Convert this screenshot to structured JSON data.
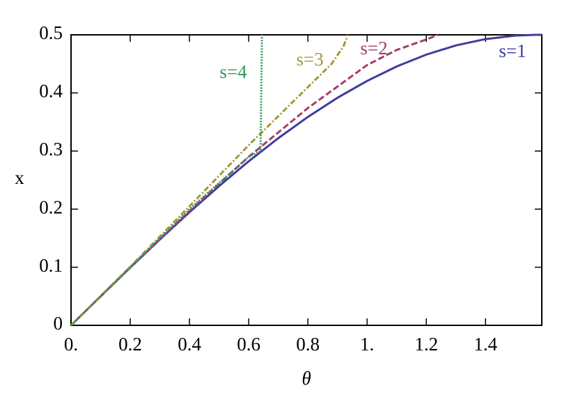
{
  "chart_data": {
    "type": "line",
    "x_label": "θ",
    "y_label": "x",
    "xlim": [
      0,
      1.59
    ],
    "ylim": [
      0,
      0.5
    ],
    "xticks": [
      {
        "value": 0,
        "label": "0."
      },
      0.2,
      0.4,
      0.6,
      0.8,
      {
        "value": 1,
        "label": "1."
      },
      1.2,
      1.4
    ],
    "yticks": [
      0,
      0.1,
      0.2,
      0.3,
      0.4,
      0.5
    ],
    "series": [
      {
        "name": "s=1",
        "color": "#3e3c9e",
        "dash": "solid",
        "x": [
          0,
          0.1,
          0.2,
          0.3,
          0.4,
          0.5,
          0.6,
          0.7,
          0.8,
          0.9,
          1.0,
          1.1,
          1.2,
          1.3,
          1.4,
          1.5,
          1.57,
          1.59
        ],
        "values": [
          0,
          0.0499,
          0.0993,
          0.1478,
          0.1947,
          0.2397,
          0.2823,
          0.3221,
          0.3587,
          0.3917,
          0.4207,
          0.4456,
          0.466,
          0.4818,
          0.4927,
          0.4987,
          0.5,
          0.5
        ]
      },
      {
        "name": "s=2",
        "color": "#a53c6c",
        "dash": "dashed",
        "x": [
          0,
          0.2,
          0.4,
          0.6,
          0.8,
          1.0,
          1.1,
          1.2,
          1.24
        ],
        "values": [
          0,
          0.1,
          0.197,
          0.29,
          0.374,
          0.448,
          0.474,
          0.492,
          0.5
        ]
      },
      {
        "name": "s=3",
        "color": "#a6963a",
        "dash": "dashdot",
        "x": [
          0,
          0.2,
          0.4,
          0.6,
          0.7,
          0.8,
          0.88,
          0.92,
          0.935
        ],
        "values": [
          0,
          0.101,
          0.205,
          0.31,
          0.36,
          0.41,
          0.45,
          0.48,
          0.5
        ]
      },
      {
        "name": "s=4",
        "color": "#2e9a50",
        "dash": "dotted",
        "x": [
          0,
          0.2,
          0.4,
          0.6,
          0.64,
          0.645
        ],
        "values": [
          0,
          0.1,
          0.2,
          0.29,
          0.3,
          0.5
        ]
      }
    ]
  }
}
